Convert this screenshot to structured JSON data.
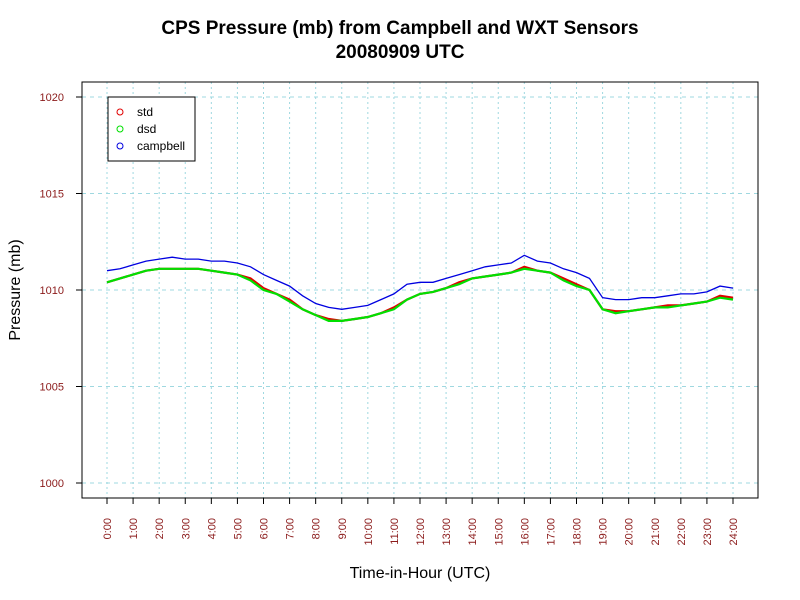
{
  "chart_data": {
    "type": "line",
    "title": "CPS Pressure (mb) from Campbell and WXT Sensors",
    "subtitle": "20080909  UTC",
    "xlabel": "Time-in-Hour (UTC)",
    "ylabel": "Pressure (mb)",
    "xlim": [
      0,
      24
    ],
    "ylim": [
      1000,
      1020
    ],
    "xticks": [
      "0:00",
      "1:00",
      "2:00",
      "3:00",
      "4:00",
      "5:00",
      "6:00",
      "7:00",
      "8:00",
      "9:00",
      "10:00",
      "11:00",
      "12:00",
      "13:00",
      "14:00",
      "15:00",
      "16:00",
      "17:00",
      "18:00",
      "19:00",
      "20:00",
      "21:00",
      "22:00",
      "23:00",
      "24:00"
    ],
    "yticks": [
      "1000",
      "1005",
      "1010",
      "1015",
      "1020"
    ],
    "grid": true,
    "legend_position": "top-left",
    "colors": {
      "std": "#e00000",
      "dsd": "#00e000",
      "campbell": "#0000e0",
      "tick_label": "#8b1a1a",
      "grid": "#9fd8e0"
    },
    "x": [
      0,
      0.5,
      1,
      1.5,
      2,
      2.5,
      3,
      3.5,
      4,
      4.5,
      5,
      5.5,
      6,
      6.5,
      7,
      7.5,
      8,
      8.5,
      9,
      9.5,
      10,
      10.5,
      11,
      11.5,
      12,
      12.5,
      13,
      13.5,
      14,
      14.5,
      15,
      15.5,
      16,
      16.5,
      17,
      17.5,
      18,
      18.5,
      19,
      19.5,
      20,
      20.5,
      21,
      21.5,
      22,
      22.5,
      23,
      23.5,
      24
    ],
    "series": [
      {
        "name": "std",
        "values": [
          1010.4,
          1010.6,
          1010.8,
          1011.0,
          1011.1,
          1011.1,
          1011.1,
          1011.1,
          1011.0,
          1010.9,
          1010.8,
          1010.6,
          1010.1,
          1009.8,
          1009.5,
          1009.0,
          1008.7,
          1008.5,
          1008.4,
          1008.5,
          1008.6,
          1008.8,
          1009.1,
          1009.5,
          1009.8,
          1009.9,
          1010.1,
          1010.4,
          1010.6,
          1010.7,
          1010.8,
          1010.9,
          1011.2,
          1011.0,
          1010.9,
          1010.6,
          1010.3,
          1010.0,
          1009.0,
          1008.9,
          1008.9,
          1009.0,
          1009.1,
          1009.2,
          1009.2,
          1009.3,
          1009.4,
          1009.7,
          1009.6
        ]
      },
      {
        "name": "dsd",
        "values": [
          1010.4,
          1010.6,
          1010.8,
          1011.0,
          1011.1,
          1011.1,
          1011.1,
          1011.1,
          1011.0,
          1010.9,
          1010.8,
          1010.5,
          1010.0,
          1009.8,
          1009.4,
          1009.0,
          1008.7,
          1008.4,
          1008.4,
          1008.5,
          1008.6,
          1008.8,
          1009.0,
          1009.5,
          1009.8,
          1009.9,
          1010.1,
          1010.3,
          1010.6,
          1010.7,
          1010.8,
          1010.9,
          1011.1,
          1011.0,
          1010.9,
          1010.5,
          1010.2,
          1010.0,
          1009.0,
          1008.8,
          1008.9,
          1009.0,
          1009.1,
          1009.1,
          1009.2,
          1009.3,
          1009.4,
          1009.6,
          1009.5
        ]
      },
      {
        "name": "campbell",
        "values": [
          1011.0,
          1011.1,
          1011.3,
          1011.5,
          1011.6,
          1011.7,
          1011.6,
          1011.6,
          1011.5,
          1011.5,
          1011.4,
          1011.2,
          1010.8,
          1010.5,
          1010.2,
          1009.7,
          1009.3,
          1009.1,
          1009.0,
          1009.1,
          1009.2,
          1009.5,
          1009.8,
          1010.3,
          1010.4,
          1010.4,
          1010.6,
          1010.8,
          1011.0,
          1011.2,
          1011.3,
          1011.4,
          1011.8,
          1011.5,
          1011.4,
          1011.1,
          1010.9,
          1010.6,
          1009.6,
          1009.5,
          1009.5,
          1009.6,
          1009.6,
          1009.7,
          1009.8,
          1009.8,
          1009.9,
          1010.2,
          1010.1
        ]
      }
    ]
  }
}
